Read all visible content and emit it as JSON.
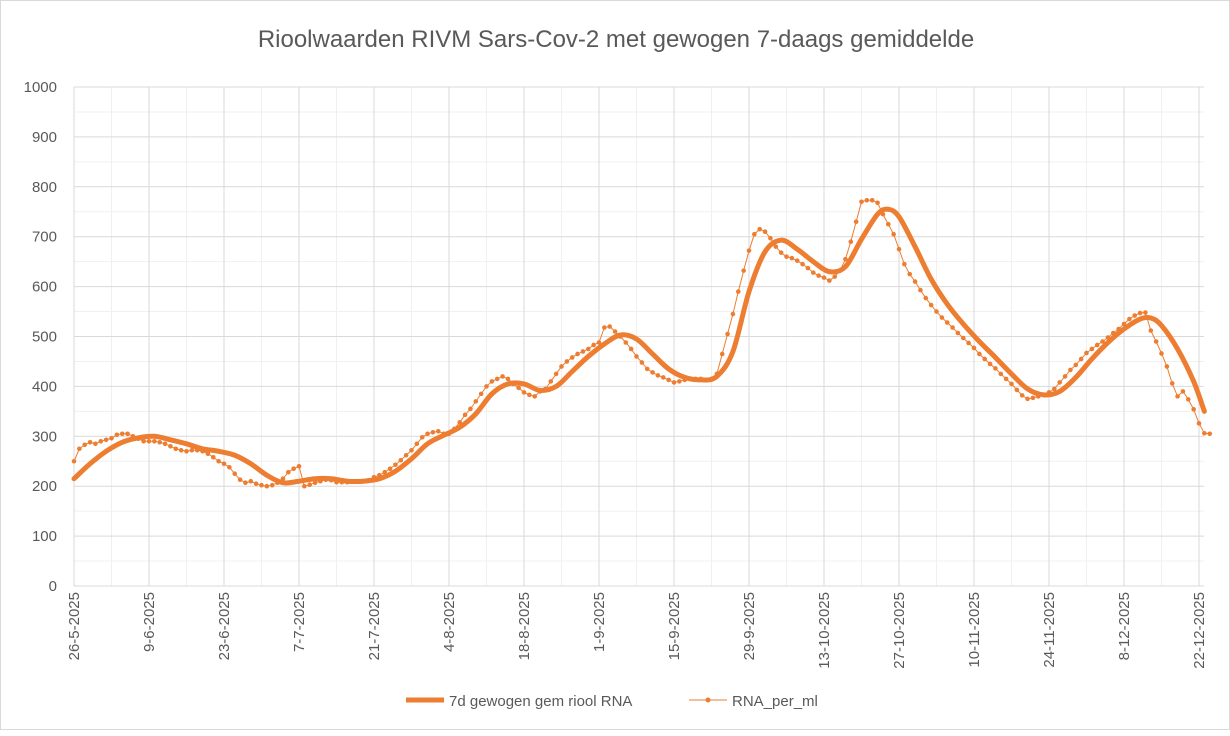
{
  "chart_data": {
    "type": "line",
    "title": "Rioolwaarden RIVM Sars-Cov-2 met gewogen 7-daags gemiddelde",
    "xlabel": "",
    "ylabel": "",
    "ylim": [
      0,
      1000
    ],
    "yticks": [
      0,
      100,
      200,
      300,
      400,
      500,
      600,
      700,
      800,
      900,
      1000
    ],
    "x_unit": "days since 26-5-2025",
    "xlim": [
      0,
      211
    ],
    "xticks": [
      {
        "day": 0,
        "label": "26-5-2025"
      },
      {
        "day": 14,
        "label": "9-6-2025"
      },
      {
        "day": 28,
        "label": "23-6-2025"
      },
      {
        "day": 42,
        "label": "7-7-2025"
      },
      {
        "day": 56,
        "label": "21-7-2025"
      },
      {
        "day": 70,
        "label": "4-8-2025"
      },
      {
        "day": 84,
        "label": "18-8-2025"
      },
      {
        "day": 98,
        "label": "1-9-2025"
      },
      {
        "day": 112,
        "label": "15-9-2025"
      },
      {
        "day": 126,
        "label": "29-9-2025"
      },
      {
        "day": 140,
        "label": "13-10-2025"
      },
      {
        "day": 154,
        "label": "27-10-2025"
      },
      {
        "day": 168,
        "label": "10-11-2025"
      },
      {
        "day": 182,
        "label": "24-11-2025"
      },
      {
        "day": 196,
        "label": "8-12-2025"
      },
      {
        "day": 210,
        "label": "22-12-2025"
      }
    ],
    "grid": true,
    "legend_position": "bottom",
    "series": [
      {
        "name": "7d gewogen gem riool RNA",
        "color": "#ED7D31",
        "style": "thick-line",
        "x": [
          0,
          3,
          6,
          9,
          12,
          15,
          18,
          21,
          24,
          27,
          30,
          33,
          36,
          39,
          42,
          45,
          48,
          51,
          54,
          57,
          60,
          63,
          66,
          69,
          72,
          75,
          78,
          81,
          84,
          87,
          90,
          93,
          96,
          99,
          102,
          105,
          108,
          111,
          114,
          117,
          120,
          123,
          126,
          129,
          132,
          135,
          138,
          141,
          144,
          147,
          150,
          152,
          154,
          157,
          160,
          163,
          166,
          169,
          172,
          175,
          178,
          181,
          184,
          187,
          190,
          193,
          196,
          199,
          201,
          203,
          206,
          209,
          211
        ],
        "values": [
          215,
          245,
          270,
          288,
          297,
          300,
          293,
          285,
          275,
          270,
          262,
          245,
          222,
          207,
          210,
          215,
          215,
          210,
          210,
          215,
          230,
          255,
          285,
          302,
          318,
          345,
          385,
          405,
          405,
          392,
          400,
          430,
          460,
          485,
          503,
          495,
          465,
          435,
          418,
          413,
          420,
          470,
          590,
          670,
          693,
          675,
          650,
          630,
          640,
          695,
          745,
          755,
          740,
          680,
          615,
          565,
          525,
          490,
          458,
          425,
          395,
          383,
          390,
          418,
          455,
          488,
          515,
          535,
          537,
          522,
          475,
          410,
          350
        ]
      },
      {
        "name": "RNA_per_ml",
        "color": "#ED7D31",
        "style": "thin-line-markers",
        "x": "daily from 0",
        "values": [
          250,
          275,
          283,
          288,
          285,
          290,
          293,
          296,
          303,
          305,
          305,
          300,
          295,
          290,
          290,
          290,
          288,
          285,
          280,
          275,
          272,
          270,
          272,
          272,
          270,
          265,
          258,
          250,
          245,
          238,
          225,
          213,
          207,
          210,
          205,
          202,
          200,
          202,
          207,
          215,
          228,
          235,
          240,
          200,
          203,
          207,
          210,
          213,
          212,
          208,
          208,
          208,
          210,
          210,
          210,
          212,
          218,
          222,
          228,
          235,
          243,
          252,
          262,
          272,
          285,
          298,
          305,
          308,
          310,
          305,
          305,
          315,
          328,
          343,
          355,
          370,
          385,
          400,
          410,
          415,
          420,
          415,
          405,
          397,
          388,
          383,
          380,
          390,
          395,
          410,
          425,
          440,
          450,
          458,
          465,
          470,
          475,
          483,
          488,
          518,
          520,
          510,
          500,
          488,
          475,
          460,
          448,
          435,
          428,
          422,
          418,
          413,
          408,
          410,
          413,
          415,
          415,
          415,
          413,
          415,
          425,
          465,
          505,
          545,
          590,
          632,
          672,
          705,
          715,
          710,
          697,
          680,
          668,
          660,
          657,
          652,
          645,
          637,
          628,
          622,
          618,
          612,
          620,
          632,
          655,
          690,
          730,
          770,
          773,
          773,
          768,
          745,
          725,
          705,
          675,
          645,
          625,
          610,
          593,
          577,
          563,
          550,
          538,
          528,
          518,
          507,
          497,
          487,
          477,
          465,
          455,
          445,
          436,
          425,
          415,
          405,
          393,
          382,
          375,
          377,
          380,
          383,
          388,
          395,
          408,
          420,
          433,
          443,
          455,
          467,
          475,
          483,
          490,
          498,
          507,
          515,
          525,
          535,
          542,
          547,
          548,
          512,
          490,
          466,
          440,
          406,
          380,
          390,
          374,
          354,
          326,
          306,
          305
        ]
      }
    ]
  }
}
